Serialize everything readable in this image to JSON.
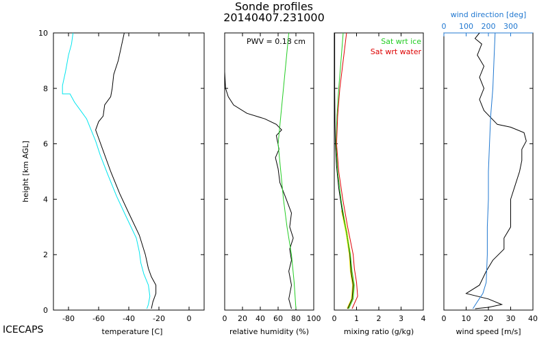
{
  "chart_data": {
    "type": "line",
    "title": "Sonde profiles",
    "subtitle": "20140407.231000",
    "footer": "ICECAPS",
    "ylabel": "height [km AGL]",
    "ylim": [
      0,
      10
    ],
    "yticks": [
      0,
      2,
      4,
      6,
      8,
      10
    ],
    "colors": {
      "black": "#000000",
      "cyan": "#00e5ee",
      "green": "#22cc22",
      "red": "#dd0000",
      "yellow": "#f0f000",
      "blue": "#1f77d0"
    },
    "panels": [
      {
        "name": "temperature",
        "xlabel": "temperature [C]",
        "xlim": [
          -90,
          10
        ],
        "xticks": [
          -80,
          -60,
          -40,
          -20,
          0
        ],
        "series": [
          {
            "name": "temperature",
            "color": "#000000",
            "points": [
              [
                -25,
                0.05
              ],
              [
                -24,
                0.3
              ],
              [
                -22,
                0.6
              ],
              [
                -22,
                0.9
              ],
              [
                -25,
                1.2
              ],
              [
                -27,
                1.5
              ],
              [
                -29,
                2.0
              ],
              [
                -33,
                2.7
              ],
              [
                -40,
                3.5
              ],
              [
                -46,
                4.2
              ],
              [
                -52,
                5.0
              ],
              [
                -56,
                5.6
              ],
              [
                -60,
                6.2
              ],
              [
                -62,
                6.5
              ],
              [
                -60,
                6.8
              ],
              [
                -57,
                7.0
              ],
              [
                -56,
                7.4
              ],
              [
                -52,
                7.7
              ],
              [
                -51,
                8.0
              ],
              [
                -50,
                8.5
              ],
              [
                -47,
                9.0
              ],
              [
                -45,
                9.5
              ],
              [
                -43,
                10.0
              ]
            ]
          },
          {
            "name": "dewpoint",
            "color": "#00e5ee",
            "points": [
              [
                -28,
                0.05
              ],
              [
                -27,
                0.2
              ],
              [
                -26,
                0.5
              ],
              [
                -27,
                0.9
              ],
              [
                -30,
                1.3
              ],
              [
                -32,
                1.7
              ],
              [
                -33,
                2.1
              ],
              [
                -35,
                2.6
              ],
              [
                -42,
                3.4
              ],
              [
                -48,
                4.1
              ],
              [
                -54,
                4.9
              ],
              [
                -59,
                5.6
              ],
              [
                -62,
                6.1
              ],
              [
                -65,
                6.5
              ],
              [
                -68,
                6.9
              ],
              [
                -72,
                7.2
              ],
              [
                -76,
                7.5
              ],
              [
                -79,
                7.8
              ],
              [
                -84,
                7.8
              ],
              [
                -84,
                8.1
              ],
              [
                -82,
                8.6
              ],
              [
                -80,
                9.2
              ],
              [
                -78,
                9.6
              ],
              [
                -77,
                10.0
              ]
            ]
          }
        ]
      },
      {
        "name": "relative humidity",
        "xlabel": "relative humidity (%)",
        "xlim": [
          0,
          100
        ],
        "xticks": [
          0,
          20,
          40,
          60,
          80,
          100
        ],
        "annotation": "PWV = 0.18 cm",
        "series": [
          {
            "name": "rh",
            "color": "#000000",
            "points": [
              [
                75,
                0.05
              ],
              [
                72,
                0.4
              ],
              [
                75,
                0.9
              ],
              [
                72,
                1.4
              ],
              [
                75,
                1.8
              ],
              [
                73,
                2.2
              ],
              [
                77,
                2.6
              ],
              [
                73,
                3.0
              ],
              [
                75,
                3.5
              ],
              [
                68,
                4.1
              ],
              [
                62,
                4.6
              ],
              [
                60,
                5.1
              ],
              [
                57,
                5.5
              ],
              [
                61,
                5.8
              ],
              [
                58,
                6.3
              ],
              [
                64,
                6.5
              ],
              [
                58,
                6.7
              ],
              [
                45,
                6.9
              ],
              [
                25,
                7.1
              ],
              [
                10,
                7.4
              ],
              [
                4,
                7.7
              ],
              [
                1,
                8.0
              ],
              [
                0,
                8.6
              ],
              [
                0,
                10.0
              ]
            ]
          },
          {
            "name": "sat wrt ice",
            "color": "#22cc22",
            "points": [
              [
                80,
                0.05
              ],
              [
                78,
                1.0
              ],
              [
                75,
                2.0
              ],
              [
                70,
                3.0
              ],
              [
                66,
                4.0
              ],
              [
                63,
                5.0
              ],
              [
                60,
                6.0
              ],
              [
                63,
                7.0
              ],
              [
                66,
                8.0
              ],
              [
                69,
                9.0
              ],
              [
                72,
                10.0
              ]
            ]
          }
        ]
      },
      {
        "name": "mixing ratio",
        "xlabel": "mixing ratio (g/kg)",
        "xlim": [
          0,
          4
        ],
        "xticks": [
          0,
          1,
          2,
          3,
          4
        ],
        "legend": [
          {
            "label": "Sat wrt ice",
            "color": "#22cc22"
          },
          {
            "label": "Sat wrt water",
            "color": "#dd0000"
          }
        ],
        "series": [
          {
            "name": "mixing ratio",
            "color": "#000000",
            "points": [
              [
                0.6,
                0.05
              ],
              [
                0.8,
                0.4
              ],
              [
                0.85,
                0.9
              ],
              [
                0.75,
                1.4
              ],
              [
                0.7,
                2.0
              ],
              [
                0.55,
                2.8
              ],
              [
                0.35,
                3.6
              ],
              [
                0.2,
                4.4
              ],
              [
                0.1,
                5.2
              ],
              [
                0.05,
                6.0
              ],
              [
                0.03,
                6.8
              ],
              [
                0.02,
                8.0
              ],
              [
                0.02,
                10.0
              ]
            ]
          },
          {
            "name": "sat wrt ice",
            "color": "#22cc22",
            "points": [
              [
                0.65,
                0.05
              ],
              [
                0.85,
                0.4
              ],
              [
                0.9,
                0.9
              ],
              [
                0.8,
                1.4
              ],
              [
                0.72,
                2.0
              ],
              [
                0.5,
                3.0
              ],
              [
                0.3,
                4.0
              ],
              [
                0.15,
                5.0
              ],
              [
                0.08,
                6.0
              ],
              [
                0.12,
                7.0
              ],
              [
                0.2,
                8.0
              ],
              [
                0.3,
                9.0
              ],
              [
                0.4,
                10.0
              ]
            ]
          },
          {
            "name": "sat wrt water",
            "color": "#dd0000",
            "points": [
              [
                0.8,
                0.05
              ],
              [
                1.05,
                0.5
              ],
              [
                1.0,
                1.0
              ],
              [
                0.9,
                1.5
              ],
              [
                0.85,
                2.0
              ],
              [
                0.6,
                3.0
              ],
              [
                0.38,
                4.0
              ],
              [
                0.2,
                5.0
              ],
              [
                0.1,
                6.0
              ],
              [
                0.15,
                7.0
              ],
              [
                0.25,
                8.0
              ],
              [
                0.4,
                9.0
              ],
              [
                0.55,
                10.0
              ]
            ]
          }
        ]
      },
      {
        "name": "wind",
        "xlabel": "wind speed [m/s]",
        "xlim": [
          0,
          40
        ],
        "xticks": [
          0,
          10,
          20,
          30,
          40
        ],
        "top_xlabel": "wind direction [deg]",
        "top_xlim": [
          0,
          400
        ],
        "top_xticks": [
          0,
          100,
          200,
          300
        ],
        "series": [
          {
            "name": "wind speed",
            "color": "#000000",
            "points": [
              [
                14,
                0.05
              ],
              [
                20,
                0.1
              ],
              [
                26,
                0.2
              ],
              [
                20,
                0.4
              ],
              [
                10,
                0.6
              ],
              [
                16,
                0.9
              ],
              [
                19,
                1.4
              ],
              [
                22,
                1.8
              ],
              [
                27,
                2.2
              ],
              [
                27,
                2.6
              ],
              [
                30,
                3.0
              ],
              [
                30,
                3.5
              ],
              [
                30,
                4.0
              ],
              [
                32,
                4.5
              ],
              [
                34,
                5.0
              ],
              [
                35,
                5.4
              ],
              [
                35,
                5.8
              ],
              [
                37,
                6.1
              ],
              [
                36,
                6.4
              ],
              [
                30,
                6.6
              ],
              [
                24,
                6.7
              ],
              [
                18,
                7.2
              ],
              [
                16,
                7.6
              ],
              [
                18,
                8.0
              ],
              [
                16,
                8.4
              ],
              [
                18,
                8.8
              ],
              [
                15,
                9.2
              ],
              [
                17,
                9.6
              ],
              [
                14,
                9.8
              ],
              [
                16,
                10.0
              ]
            ]
          },
          {
            "name": "wind direction",
            "color": "#1f77d0",
            "axis": "top",
            "points": [
              [
                130,
                0.05
              ],
              [
                150,
                0.3
              ],
              [
                175,
                0.6
              ],
              [
                190,
                1.0
              ],
              [
                195,
                2.0
              ],
              [
                195,
                3.0
              ],
              [
                200,
                4.0
              ],
              [
                200,
                5.0
              ],
              [
                205,
                6.0
              ],
              [
                210,
                7.0
              ],
              [
                220,
                8.0
              ],
              [
                225,
                9.0
              ],
              [
                230,
                10.0
              ]
            ]
          }
        ]
      }
    ]
  }
}
